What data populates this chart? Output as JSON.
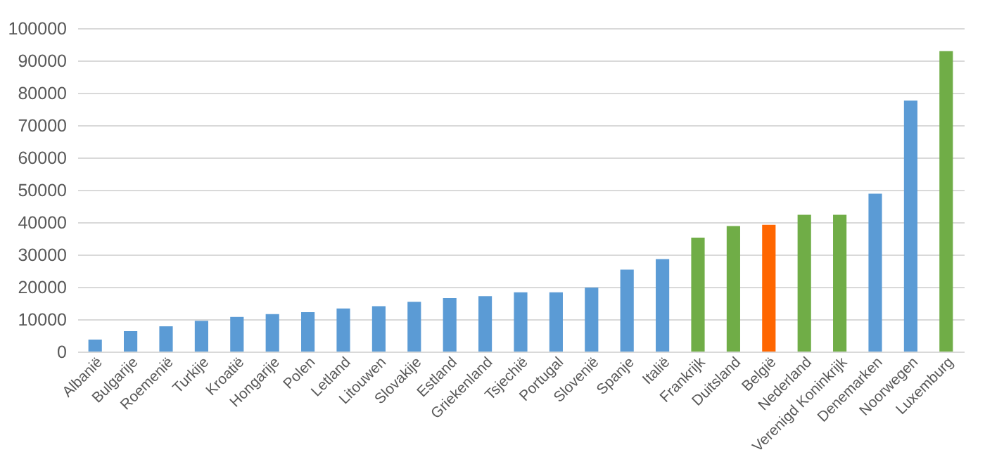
{
  "chart_data": {
    "type": "bar",
    "categories": [
      "Albanië",
      "Bulgarije",
      "Roemenië",
      "Turkije",
      "Kroatië",
      "Hongarije",
      "Polen",
      "Letland",
      "Litouwen",
      "Slovakije",
      "Estland",
      "Griekenland",
      "Tsjechië",
      "Portugal",
      "Slovenië",
      "Spanje",
      "Italië",
      "Frankrijk",
      "Duitsland",
      "België",
      "Nederland",
      "Verenigd Koninkrijk",
      "Denemarken",
      "Noorwegen",
      "Luxemburg"
    ],
    "values": [
      3700,
      6300,
      7800,
      9500,
      10700,
      11600,
      12200,
      13300,
      14000,
      15400,
      16500,
      17100,
      18300,
      18300,
      19800,
      25300,
      28600,
      35200,
      38800,
      39200,
      42300,
      42300,
      48800,
      77600,
      92900
    ],
    "colors": [
      "#5b9bd5",
      "#5b9bd5",
      "#5b9bd5",
      "#5b9bd5",
      "#5b9bd5",
      "#5b9bd5",
      "#5b9bd5",
      "#5b9bd5",
      "#5b9bd5",
      "#5b9bd5",
      "#5b9bd5",
      "#5b9bd5",
      "#5b9bd5",
      "#5b9bd5",
      "#5b9bd5",
      "#5b9bd5",
      "#5b9bd5",
      "#70ad47",
      "#70ad47",
      "#ff6600",
      "#70ad47",
      "#70ad47",
      "#5b9bd5",
      "#5b9bd5",
      "#70ad47"
    ],
    "ylim": [
      0,
      100000
    ],
    "yticks": [
      0,
      10000,
      20000,
      30000,
      40000,
      50000,
      60000,
      70000,
      80000,
      90000,
      100000
    ],
    "grid": "y"
  }
}
